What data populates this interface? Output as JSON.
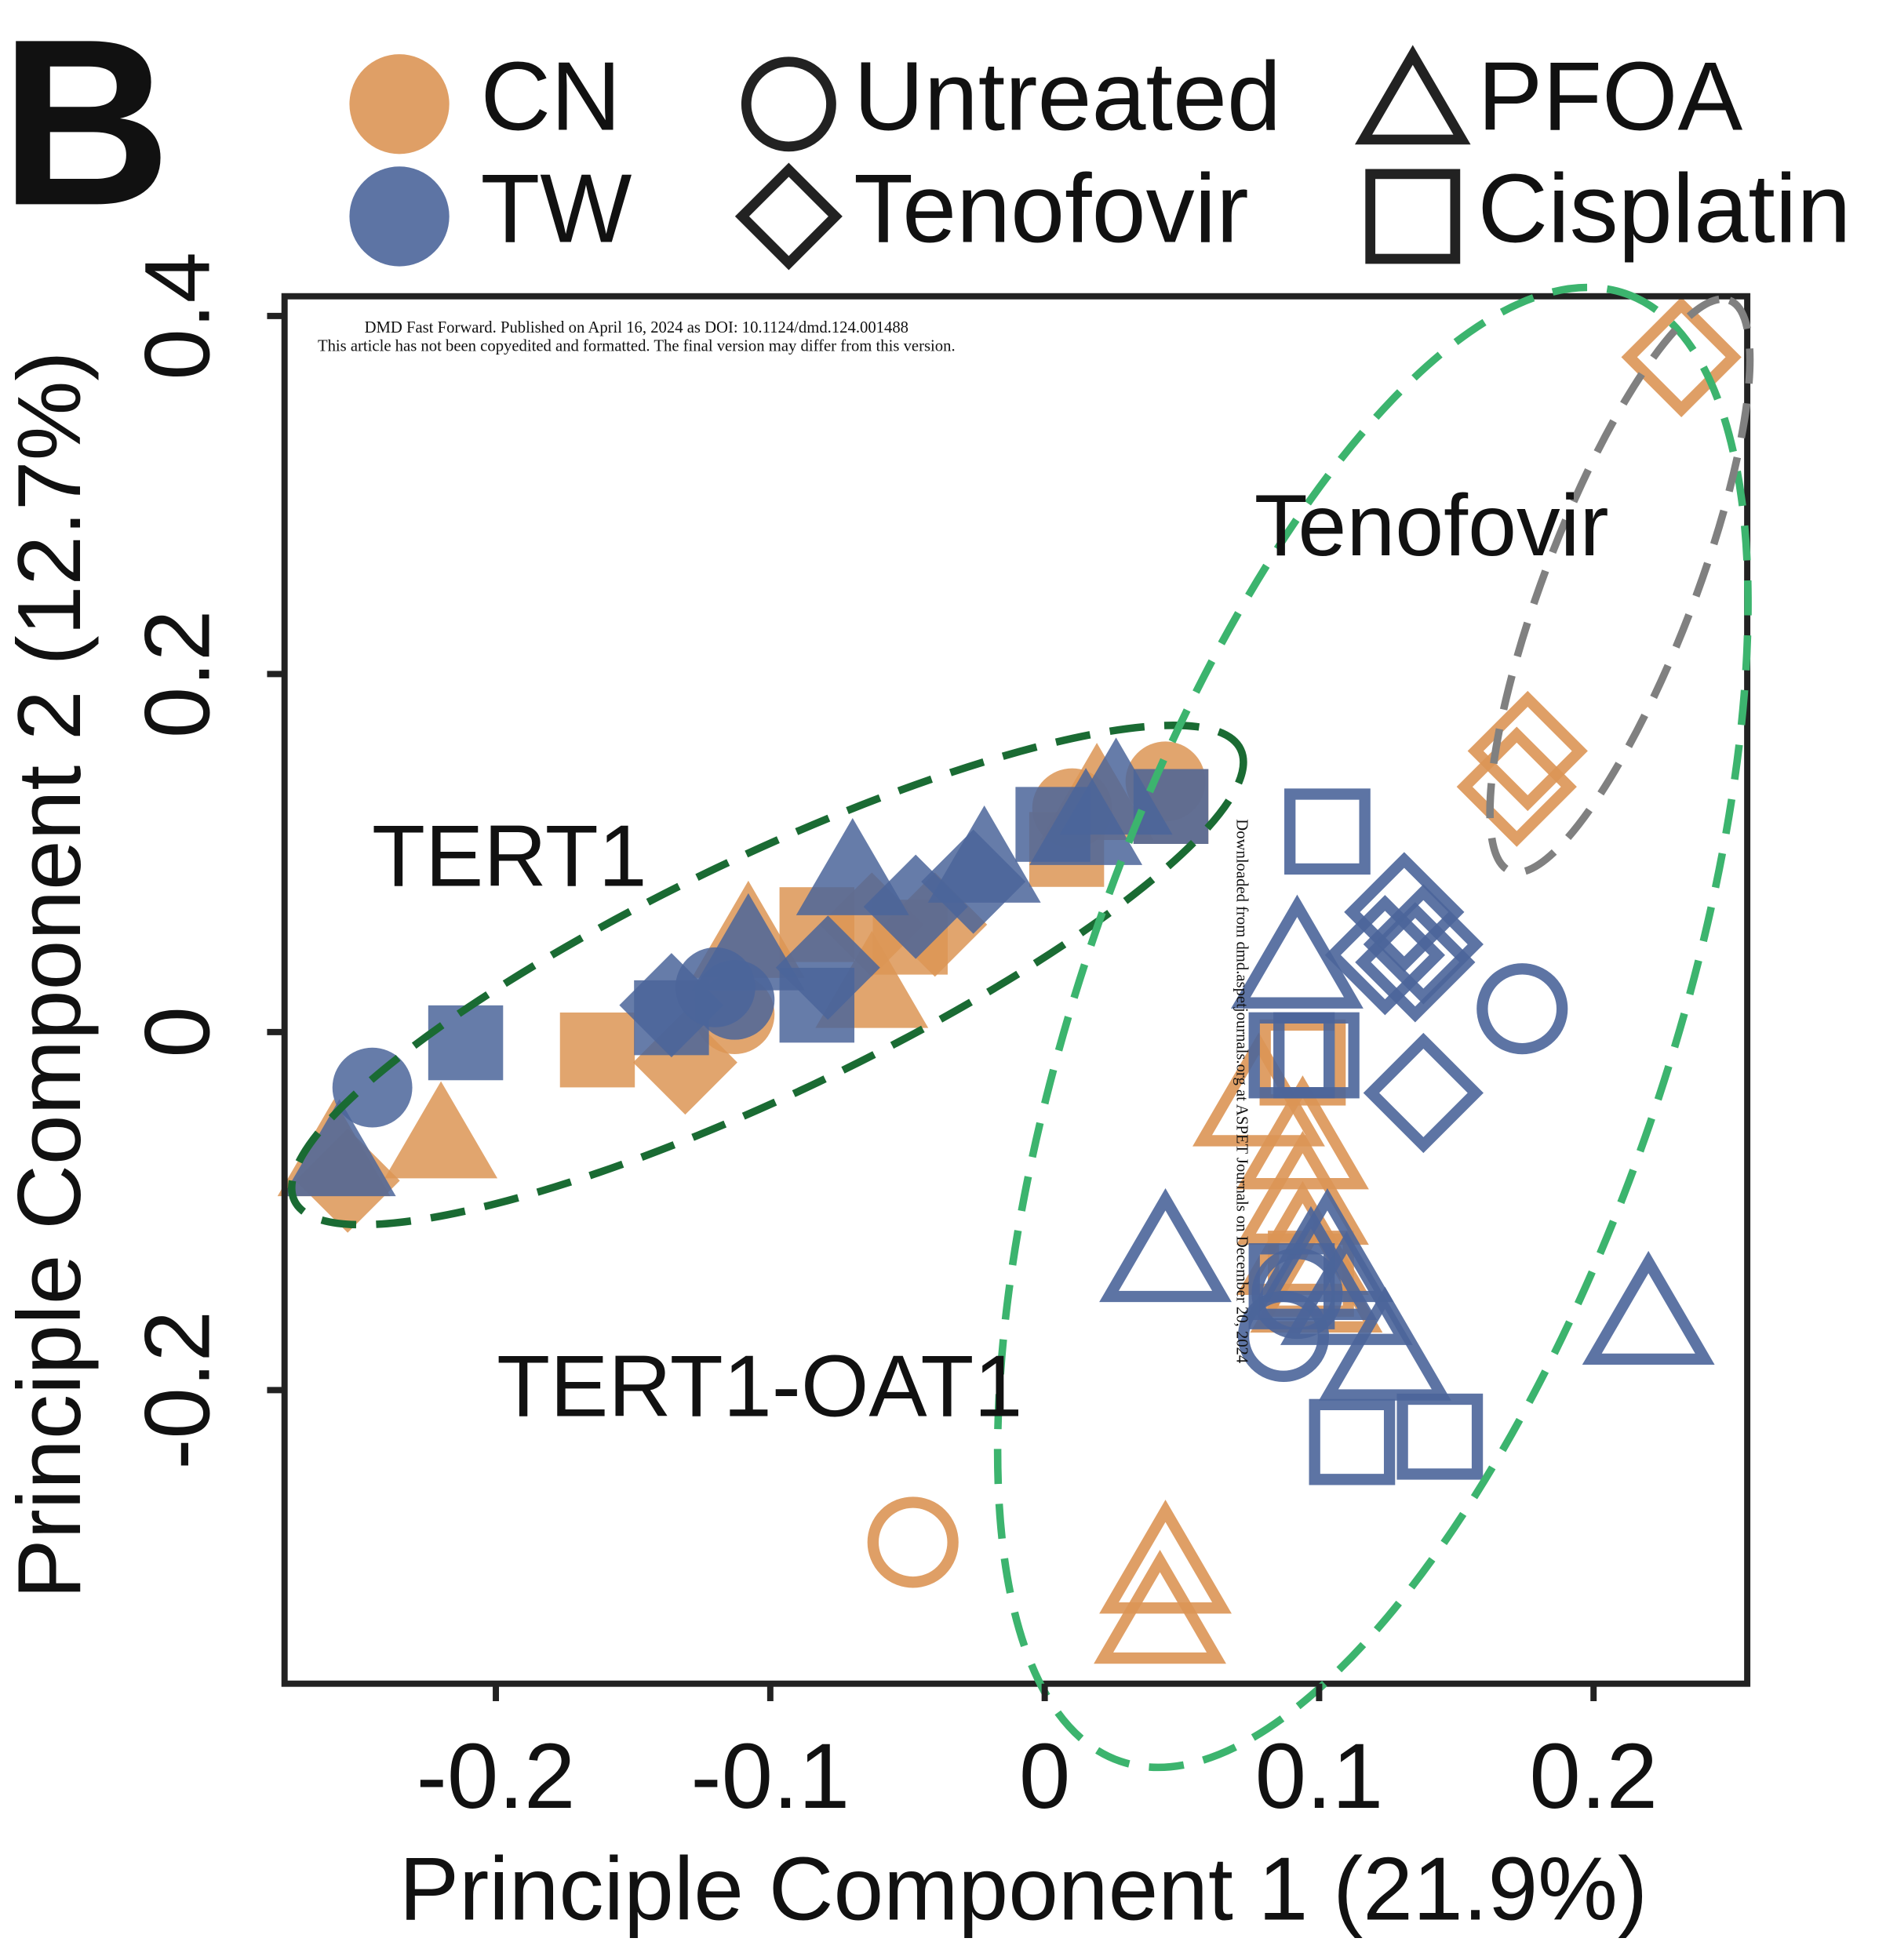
{
  "panel": "B",
  "watermark": [
    "DMD Fast Forward. Published on April 16, 2024 as DOI: 10.1124/dmd.124.001488",
    "This article has not been copyedited and formatted. The final version may differ from this version.",
    "Downloaded from dmd.aspetjournals.org at ASPET Journals on December 20, 2024"
  ],
  "chart_data": {
    "type": "scatter",
    "x_label": "Principle Component 1 (21.9%)",
    "y_label": "Principle Component 2 (12.7%)",
    "annotations": [
      "TERT1",
      "TERT1-OAT1",
      "Tenofovir"
    ],
    "color_legend": [
      {
        "name": "CN",
        "color": "#dc9555"
      },
      {
        "name": "TW",
        "color": "#4b659a"
      }
    ],
    "shape_legend": [
      {
        "name": "Untreated",
        "shape": "circle"
      },
      {
        "name": "Tenofovir",
        "shape": "diamond"
      },
      {
        "name": "PFOA",
        "shape": "triangle"
      },
      {
        "name": "Cisplatin",
        "shape": "square"
      }
    ],
    "xlim": [
      -0.277,
      0.256
    ],
    "xticks": [
      -0.2,
      -0.1,
      0,
      0.1,
      0.2
    ],
    "ylim": [
      -0.364,
      0.411
    ],
    "yticks": [
      -0.2,
      0,
      0.2,
      0.4
    ],
    "series": [
      {
        "color": "#dc9555",
        "shape": "square",
        "filled": true,
        "x": [
          -0.163,
          -0.083,
          -0.049,
          0.008,
          0.046
        ],
        "y": [
          -0.01,
          0.06,
          0.053,
          0.102,
          0.126
        ]
      },
      {
        "color": "#dc9555",
        "shape": "triangle",
        "filled": true,
        "x": [
          -0.22,
          -0.259,
          -0.063,
          0.019,
          -0.108
        ],
        "y": [
          -0.059,
          -0.069,
          0.025,
          0.13,
          0.053
        ]
      },
      {
        "color": "#dc9555",
        "shape": "diamond",
        "filled": true,
        "x": [
          -0.131,
          -0.063,
          -0.04,
          -0.254
        ],
        "y": [
          -0.017,
          0.06,
          0.06,
          -0.083
        ]
      },
      {
        "color": "#dc9555",
        "shape": "circle",
        "filled": true,
        "x": [
          0.044,
          0.01,
          -0.113
        ],
        "y": [
          0.14,
          0.125,
          0.01
        ]
      },
      {
        "color": "#4b659a",
        "shape": "square",
        "filled": true,
        "x": [
          -0.211,
          -0.136,
          -0.083,
          0.003,
          0.046
        ],
        "y": [
          -0.006,
          0.008,
          0.015,
          0.116,
          0.126
        ]
      },
      {
        "color": "#4b659a",
        "shape": "triangle",
        "filled": true,
        "x": [
          -0.257,
          -0.07,
          -0.108,
          -0.022,
          0.026,
          0.015
        ],
        "y": [
          -0.069,
          0.088,
          0.046,
          0.095,
          0.133,
          0.116
        ]
      },
      {
        "color": "#4b659a",
        "shape": "diamond",
        "filled": true,
        "x": [
          -0.079,
          -0.047,
          -0.026,
          -0.136
        ],
        "y": [
          0.036,
          0.07,
          0.084,
          0.015
        ]
      },
      {
        "color": "#4b659a",
        "shape": "circle",
        "filled": true,
        "x": [
          -0.245,
          -0.113,
          -0.12
        ],
        "y": [
          -0.031,
          0.018,
          0.025
        ]
      },
      {
        "color": "#dc9555",
        "shape": "circle",
        "filled": false,
        "x": [
          -0.048
        ],
        "y": [
          -0.285
        ]
      },
      {
        "color": "#dc9555",
        "shape": "triangle",
        "filled": false,
        "x": [
          0.078,
          0.094,
          0.094,
          0.094,
          0.099,
          0.044,
          0.042
        ],
        "y": [
          -0.038,
          -0.062,
          -0.093,
          -0.121,
          -0.142,
          -0.299,
          -0.327
        ]
      },
      {
        "color": "#dc9555",
        "shape": "diamond",
        "filled": false,
        "x": [
          0.232,
          0.176,
          0.172
        ],
        "y": [
          0.377,
          0.157,
          0.137
        ]
      },
      {
        "color": "#dc9555",
        "shape": "square",
        "filled": false,
        "x": [
          0.094,
          0.097
        ],
        "y": [
          -0.017,
          -0.135
        ]
      },
      {
        "color": "#4b659a",
        "shape": "circle",
        "filled": false,
        "x": [
          0.174,
          0.087,
          0.092
        ],
        "y": [
          0.013,
          -0.17,
          -0.146
        ]
      },
      {
        "color": "#4b659a",
        "shape": "triangle",
        "filled": false,
        "x": [
          0.092,
          0.044,
          0.103,
          0.097,
          0.11,
          0.124,
          0.22
        ],
        "y": [
          0.039,
          -0.125,
          -0.125,
          -0.135,
          -0.149,
          -0.18,
          -0.16
        ]
      },
      {
        "color": "#4b659a",
        "shape": "diamond",
        "filled": false,
        "x": [
          0.131,
          0.124,
          0.138,
          0.135,
          0.138
        ],
        "y": [
          0.067,
          0.043,
          0.049,
          0.039,
          -0.034
        ]
      },
      {
        "color": "#4b659a",
        "shape": "square",
        "filled": false,
        "x": [
          0.103,
          0.099,
          0.09,
          0.09,
          0.112,
          0.144
        ],
        "y": [
          0.112,
          -0.013,
          -0.013,
          -0.142,
          -0.229,
          -0.226
        ]
      }
    ]
  }
}
